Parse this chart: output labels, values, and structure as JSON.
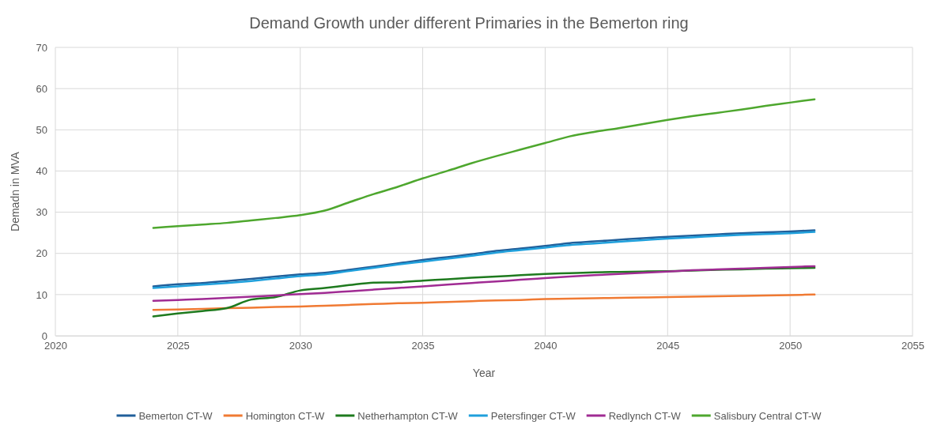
{
  "chart_data": {
    "type": "line",
    "title": "Demand Growth under different Primaries in the Bemerton ring",
    "xlabel": "Year",
    "ylabel": "Demadn in MVA",
    "x": [
      2024,
      2025,
      2026,
      2027,
      2028,
      2029,
      2030,
      2031,
      2032,
      2033,
      2034,
      2035,
      2036,
      2037,
      2038,
      2039,
      2040,
      2041,
      2042,
      2043,
      2044,
      2045,
      2046,
      2047,
      2048,
      2049,
      2050,
      2051
    ],
    "xlim": [
      2020,
      2055
    ],
    "xticks": [
      2020,
      2025,
      2030,
      2035,
      2040,
      2045,
      2050,
      2055
    ],
    "ylim": [
      0,
      70
    ],
    "yticks": [
      0,
      10,
      20,
      30,
      40,
      50,
      60,
      70
    ],
    "grid": true,
    "legend": "bottom",
    "marker": "none",
    "line_style": "solid",
    "series": [
      {
        "name": "Bemerton CT-W",
        "color": "#215f9a",
        "values": [
          12.0,
          12.5,
          12.8,
          13.3,
          13.8,
          14.4,
          14.9,
          15.3,
          16.0,
          16.8,
          17.6,
          18.4,
          19.1,
          19.8,
          20.6,
          21.2,
          21.8,
          22.5,
          22.9,
          23.3,
          23.7,
          24.0,
          24.3,
          24.6,
          24.9,
          25.1,
          25.3,
          25.6
        ]
      },
      {
        "name": "Homington CT-W",
        "color": "#f07a33",
        "values": [
          6.3,
          6.4,
          6.5,
          6.7,
          6.8,
          7.0,
          7.1,
          7.3,
          7.5,
          7.7,
          7.9,
          8.0,
          8.2,
          8.4,
          8.6,
          8.7,
          8.9,
          9.0,
          9.1,
          9.2,
          9.3,
          9.4,
          9.5,
          9.6,
          9.7,
          9.8,
          9.9,
          10.0
        ]
      },
      {
        "name": "Netherhampton CT-W",
        "color": "#1e7a1e",
        "values": [
          4.7,
          5.4,
          6.0,
          6.7,
          8.8,
          9.4,
          11.0,
          11.6,
          12.3,
          12.9,
          13.0,
          13.4,
          13.7,
          14.1,
          14.4,
          14.7,
          15.0,
          15.2,
          15.4,
          15.5,
          15.6,
          15.7,
          15.8,
          16.0,
          16.1,
          16.3,
          16.4,
          16.5
        ]
      },
      {
        "name": "Petersfinger CT-W",
        "color": "#1fa0dc",
        "values": [
          11.6,
          12.0,
          12.4,
          12.8,
          13.3,
          13.9,
          14.5,
          14.9,
          15.7,
          16.5,
          17.3,
          18.0,
          18.7,
          19.4,
          20.2,
          20.8,
          21.4,
          22.0,
          22.4,
          22.8,
          23.2,
          23.6,
          23.9,
          24.2,
          24.5,
          24.7,
          24.9,
          25.2
        ]
      },
      {
        "name": "Redlynch CT-W",
        "color": "#a02b93",
        "values": [
          8.5,
          8.7,
          8.9,
          9.2,
          9.5,
          9.8,
          10.1,
          10.4,
          10.8,
          11.2,
          11.6,
          12.0,
          12.4,
          12.8,
          13.2,
          13.6,
          14.0,
          14.4,
          14.7,
          15.0,
          15.3,
          15.6,
          15.9,
          16.1,
          16.3,
          16.5,
          16.7,
          16.9
        ]
      },
      {
        "name": "Salisbury Central CT-W",
        "color": "#4ea72e",
        "values": [
          26.2,
          26.6,
          27.0,
          27.4,
          28.0,
          28.6,
          29.3,
          30.4,
          32.4,
          34.4,
          36.2,
          38.2,
          40.0,
          41.9,
          43.6,
          45.2,
          46.8,
          48.4,
          49.5,
          50.4,
          51.4,
          52.4,
          53.3,
          54.1,
          54.9,
          55.8,
          56.6,
          57.4
        ]
      }
    ]
  }
}
